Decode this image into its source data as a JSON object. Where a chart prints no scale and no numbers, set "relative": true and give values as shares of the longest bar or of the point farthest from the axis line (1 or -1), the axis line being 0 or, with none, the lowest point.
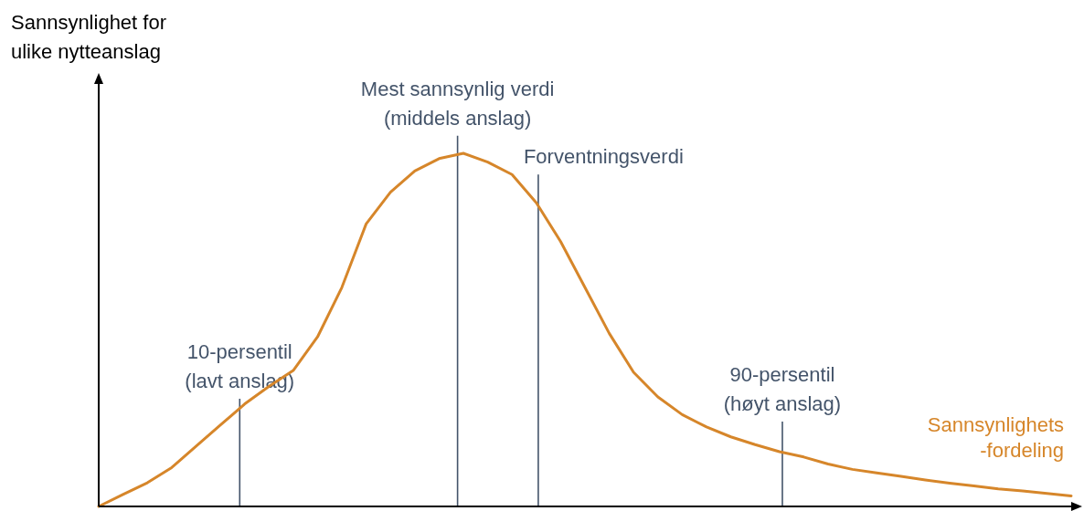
{
  "chart_data": {
    "type": "line",
    "relative": true,
    "marker": "none",
    "line_style": "solid",
    "ylabel": "Sannsynlighet for\nulike nytteanslag",
    "categories": [
      null,
      null,
      null,
      null,
      null,
      null,
      null,
      null,
      null,
      null,
      null,
      null,
      null,
      null,
      null,
      null,
      null,
      null,
      null,
      null,
      null,
      null,
      null,
      null,
      null,
      null,
      null,
      null,
      null,
      null,
      null,
      null,
      null,
      null,
      null,
      null,
      null,
      null,
      null,
      null,
      null
    ],
    "series": [
      {
        "name": "Sannsynlighets\n-fordeling",
        "color": "#d6862a",
        "values": [
          0,
          0.034,
          0.067,
          0.11,
          0.17,
          0.23,
          0.29,
          0.34,
          0.385,
          0.48,
          0.62,
          0.8,
          0.89,
          0.95,
          0.985,
          1,
          0.975,
          0.94,
          0.86,
          0.75,
          0.62,
          0.49,
          0.38,
          0.31,
          0.26,
          0.225,
          0.197,
          0.175,
          0.155,
          0.14,
          0.12,
          0.105,
          0.095,
          0.085,
          0.075,
          0.066,
          0.058,
          0.05,
          0.044,
          0.037,
          0.03
        ]
      }
    ],
    "annotations": [
      "10-persentil\n(lavt anslag)",
      "Mest sannsynlig verdi\n(middels anslag)",
      "Forventningsverdi",
      "90-persentil\n(høyt anslag)"
    ]
  }
}
